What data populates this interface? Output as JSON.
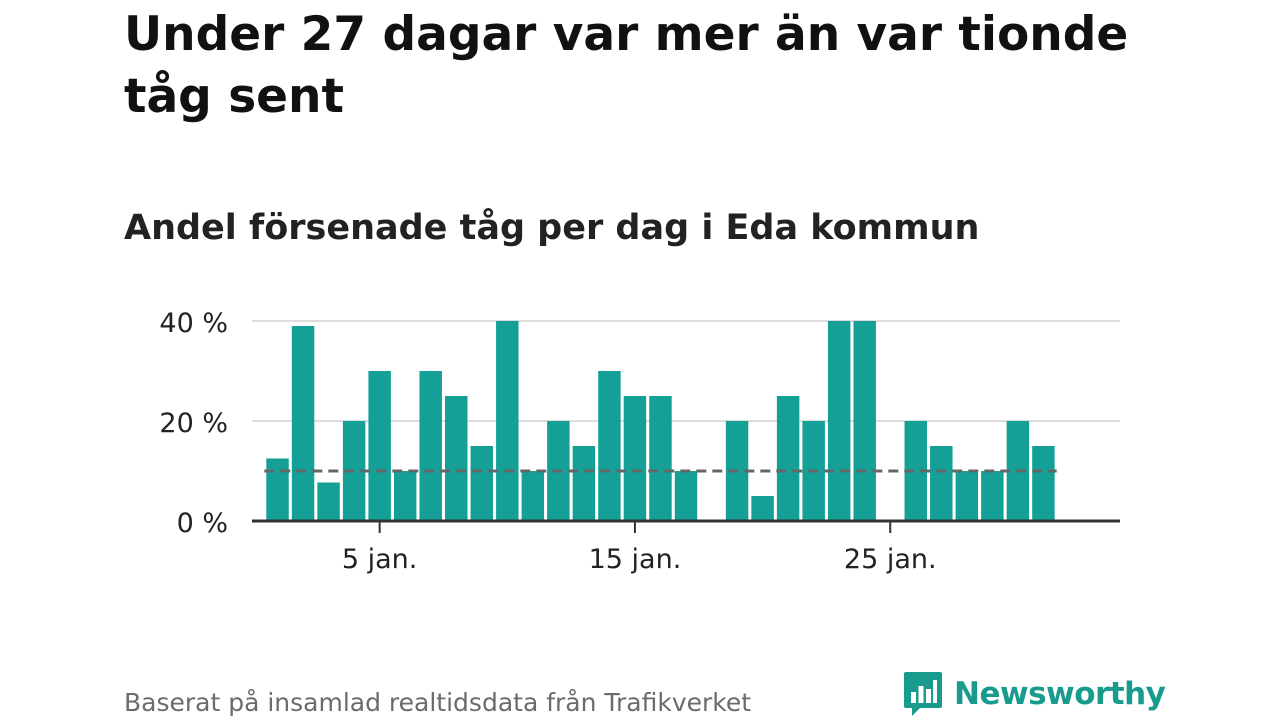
{
  "title": "Under 27 dagar var mer än var tionde tåg sent",
  "subtitle": "Andel försenade tåg per dag i Eda kommun",
  "source": "Baserat på insamlad realtidsdata från Trafikverket",
  "brand": {
    "name": "Newsworthy",
    "logo_icon": "bar-chart-speech-bubble-icon"
  },
  "colors": {
    "bar": "#14a097",
    "reference_line": "#666666",
    "grid": "#dddddd",
    "axis": "#333333",
    "brand": "#189b8c"
  },
  "chart_data": {
    "type": "bar",
    "x": [
      1,
      2,
      3,
      4,
      5,
      6,
      7,
      8,
      9,
      10,
      11,
      12,
      13,
      14,
      15,
      16,
      17,
      18,
      19,
      20,
      21,
      22,
      23,
      24,
      25,
      26,
      27,
      28,
      29,
      30,
      31
    ],
    "values": [
      12.5,
      39,
      7.7,
      20,
      30,
      10,
      30,
      25,
      15,
      40,
      10,
      20,
      15,
      30,
      25,
      25,
      10,
      null,
      20,
      5,
      25,
      20,
      40,
      40,
      null,
      20,
      15,
      10,
      10,
      20,
      15
    ],
    "reference_line": 10,
    "ylim": [
      0,
      40
    ],
    "yticks": [
      {
        "value": 0,
        "label": "0 %"
      },
      {
        "value": 20,
        "label": "20 %"
      },
      {
        "value": 40,
        "label": "40 %"
      }
    ],
    "xticks": [
      {
        "value": 5,
        "label": "5 jan."
      },
      {
        "value": 15,
        "label": "15 jan."
      },
      {
        "value": 25,
        "label": "25 jan."
      }
    ],
    "grid": true,
    "legend": "none"
  }
}
